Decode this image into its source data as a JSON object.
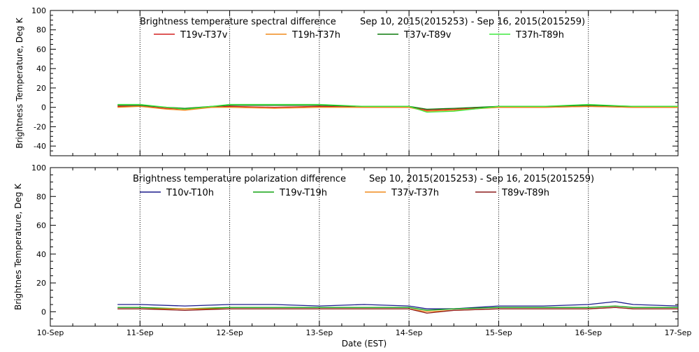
{
  "chart_data": [
    {
      "type": "line",
      "title": "Brightness temperature spectral difference",
      "date_range": "Sep 10, 2015(2015253) - Sep 16, 2015(2015259)",
      "ylabel": "Brightness Temperature, Deg K",
      "xlabel": "",
      "ylim": [
        -50,
        100
      ],
      "y_ticks": [
        -40,
        -20,
        0,
        20,
        40,
        60,
        80,
        100
      ],
      "xlim": [
        0,
        7
      ],
      "x_tick_values": [
        0,
        1,
        2,
        3,
        4,
        5,
        6,
        7
      ],
      "x_tick_labels": [],
      "grid": "vertical dotted lines at each day",
      "legend_position": "top",
      "series": [
        {
          "name": "T19v-T37v",
          "color": "#d42020",
          "x": [
            0.75,
            1.0,
            1.3,
            1.5,
            1.8,
            2.0,
            2.5,
            3.0,
            3.5,
            4.0,
            4.2,
            4.5,
            5.0,
            5.5,
            6.0,
            6.5,
            7.0
          ],
          "values": [
            1,
            1,
            -1,
            -2,
            0,
            1,
            0,
            1,
            0,
            0,
            -3,
            -2,
            0,
            0,
            1,
            0,
            0
          ]
        },
        {
          "name": "T19h-T37h",
          "color": "#f08a1c",
          "x": [
            0.75,
            1.0,
            1.3,
            1.5,
            1.8,
            2.0,
            2.5,
            3.0,
            3.5,
            4.0,
            4.2,
            4.5,
            5.0,
            5.5,
            6.0,
            6.5,
            7.0
          ],
          "values": [
            0,
            1,
            -2,
            -3,
            0,
            0,
            -1,
            0,
            0,
            0,
            -4,
            -3,
            0,
            0,
            1,
            0,
            0
          ]
        },
        {
          "name": "T37v-T89v",
          "color": "#0b7a0b",
          "x": [
            0.75,
            1.0,
            1.3,
            1.5,
            1.8,
            2.0,
            2.5,
            3.0,
            3.5,
            4.0,
            4.2,
            4.5,
            5.0,
            5.5,
            6.0,
            6.5,
            7.0
          ],
          "values": [
            2,
            2,
            0,
            -1,
            1,
            2,
            2,
            2,
            1,
            1,
            -2,
            -1,
            1,
            1,
            2,
            1,
            1
          ]
        },
        {
          "name": "T37h-T89h",
          "color": "#3ee83e",
          "x": [
            0.75,
            1.0,
            1.3,
            1.5,
            1.8,
            2.0,
            2.5,
            3.0,
            3.5,
            4.0,
            4.2,
            4.5,
            5.0,
            5.5,
            6.0,
            6.5,
            7.0
          ],
          "values": [
            3,
            3,
            0,
            -2,
            1,
            3,
            3,
            3,
            1,
            1,
            -5,
            -4,
            1,
            1,
            3,
            1,
            1
          ]
        }
      ]
    },
    {
      "type": "line",
      "title": "Brightness temperature polarization difference",
      "date_range": "Sep 10, 2015(2015253) - Sep 16, 2015(2015259)",
      "ylabel": "Brightnes Temperature, Deg K",
      "xlabel": "Date (EST)",
      "ylim": [
        -10,
        100
      ],
      "y_ticks": [
        0,
        20,
        40,
        60,
        80,
        100
      ],
      "xlim": [
        0,
        7
      ],
      "x_tick_values": [
        0,
        1,
        2,
        3,
        4,
        5,
        6,
        7
      ],
      "x_tick_labels": [
        "10-Sep",
        "11-Sep",
        "12-Sep",
        "13-Sep",
        "14-Sep",
        "15-Sep",
        "16-Sep",
        "17-Sep"
      ],
      "grid": "vertical dotted lines at each day",
      "legend_position": "top",
      "series": [
        {
          "name": "T10v-T10h",
          "color": "#1a1a8c",
          "x": [
            0.75,
            1.0,
            1.5,
            2.0,
            2.5,
            3.0,
            3.5,
            4.0,
            4.2,
            4.5,
            5.0,
            5.5,
            6.0,
            6.3,
            6.5,
            7.0
          ],
          "values": [
            5,
            5,
            4,
            5,
            5,
            4,
            5,
            4,
            2,
            2,
            4,
            4,
            5,
            7,
            5,
            4
          ]
        },
        {
          "name": "T19v-T19h",
          "color": "#13a313",
          "x": [
            0.75,
            1.0,
            1.5,
            2.0,
            2.5,
            3.0,
            3.5,
            4.0,
            4.2,
            4.5,
            5.0,
            5.5,
            6.0,
            6.3,
            6.5,
            7.0
          ],
          "values": [
            3,
            3,
            2,
            3,
            3,
            3,
            3,
            3,
            1,
            2,
            3,
            3,
            3,
            4,
            3,
            3
          ]
        },
        {
          "name": "T37v-T37h",
          "color": "#f08a1c",
          "x": [
            0.75,
            1.0,
            1.5,
            2.0,
            2.5,
            3.0,
            3.5,
            4.0,
            4.2,
            4.5,
            5.0,
            5.5,
            6.0,
            6.3,
            6.5,
            7.0
          ],
          "values": [
            2,
            2,
            2,
            2,
            2,
            2,
            2,
            2,
            0,
            1,
            2,
            2,
            2,
            3,
            2,
            2
          ]
        },
        {
          "name": "T89v-T89h",
          "color": "#8c1a1a",
          "x": [
            0.75,
            1.0,
            1.5,
            2.0,
            2.5,
            3.0,
            3.5,
            4.0,
            4.2,
            4.5,
            5.0,
            5.5,
            6.0,
            6.3,
            6.5,
            7.0
          ],
          "values": [
            2,
            2,
            1,
            2,
            2,
            2,
            2,
            2,
            -1,
            1,
            2,
            2,
            2,
            3,
            2,
            2
          ]
        }
      ]
    }
  ]
}
